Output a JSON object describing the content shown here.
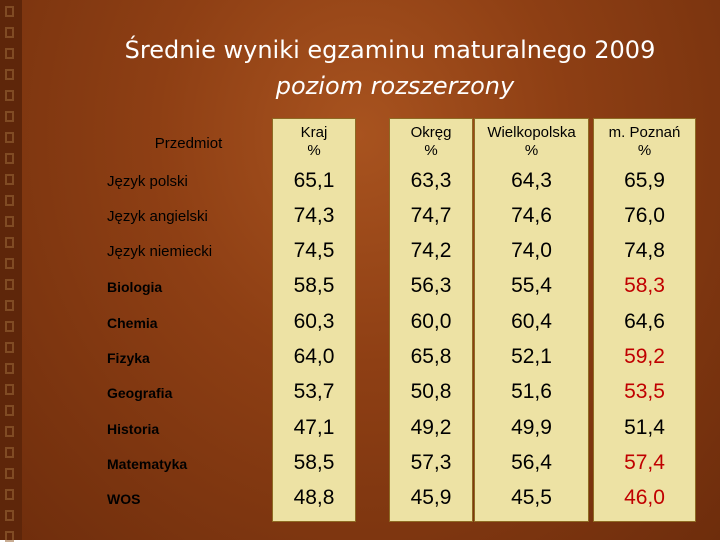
{
  "title": {
    "line1": "Średnie wyniki egzaminu maturalnego 2009",
    "line2": "poziom rozszerzony"
  },
  "table": {
    "subject_header": "Przedmiot",
    "columns": [
      {
        "name": "Kraj",
        "unit": "%"
      },
      {
        "name": "Okręg",
        "unit": "%"
      },
      {
        "name": "Wielkopolska",
        "unit": "%"
      },
      {
        "name": "m. Poznań",
        "unit": "%"
      }
    ],
    "rows": [
      {
        "subject": "Język polski",
        "values": [
          "65,1",
          "63,3",
          "64,3",
          "65,9"
        ]
      },
      {
        "subject": "Język angielski",
        "values": [
          "74,3",
          "74,7",
          "74,6",
          "76,0"
        ]
      },
      {
        "subject": "Język niemiecki",
        "values": [
          "74,5",
          "74,2",
          "74,0",
          "74,8"
        ]
      },
      {
        "subject": "Biologia",
        "values": [
          "58,5",
          "56,3",
          "55,4",
          "58,3"
        ]
      },
      {
        "subject": "Chemia",
        "values": [
          "60,3",
          "60,0",
          "60,4",
          "64,6"
        ]
      },
      {
        "subject": "Fizyka",
        "values": [
          "64,0",
          "65,8",
          "52,1",
          "59,2"
        ]
      },
      {
        "subject": "Geografia",
        "values": [
          "53,7",
          "50,8",
          "51,6",
          "53,5"
        ]
      },
      {
        "subject": "Historia",
        "values": [
          "47,1",
          "49,2",
          "49,9",
          "51,4"
        ]
      },
      {
        "subject": "Matematyka",
        "values": [
          "58,5",
          "57,3",
          "56,4",
          "57,4"
        ]
      },
      {
        "subject": "WOS",
        "values": [
          "48,8",
          "45,9",
          "45,5",
          "46,0"
        ]
      }
    ],
    "highlight_color": "#c00000"
  }
}
